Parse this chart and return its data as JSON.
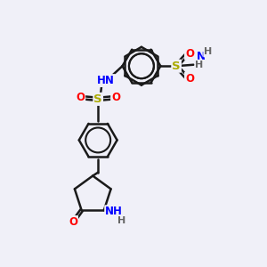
{
  "bg_color": "#f0f0f8",
  "bond_color": "#1a1a1a",
  "bond_width": 1.8,
  "atom_colors": {
    "N": "#0000ff",
    "O": "#ff0000",
    "S": "#aaaa00",
    "H": "#666666",
    "C": "#1a1a1a"
  },
  "font_size": 8.5,
  "ring_r": 0.72,
  "inner_ring_r": 0.47
}
